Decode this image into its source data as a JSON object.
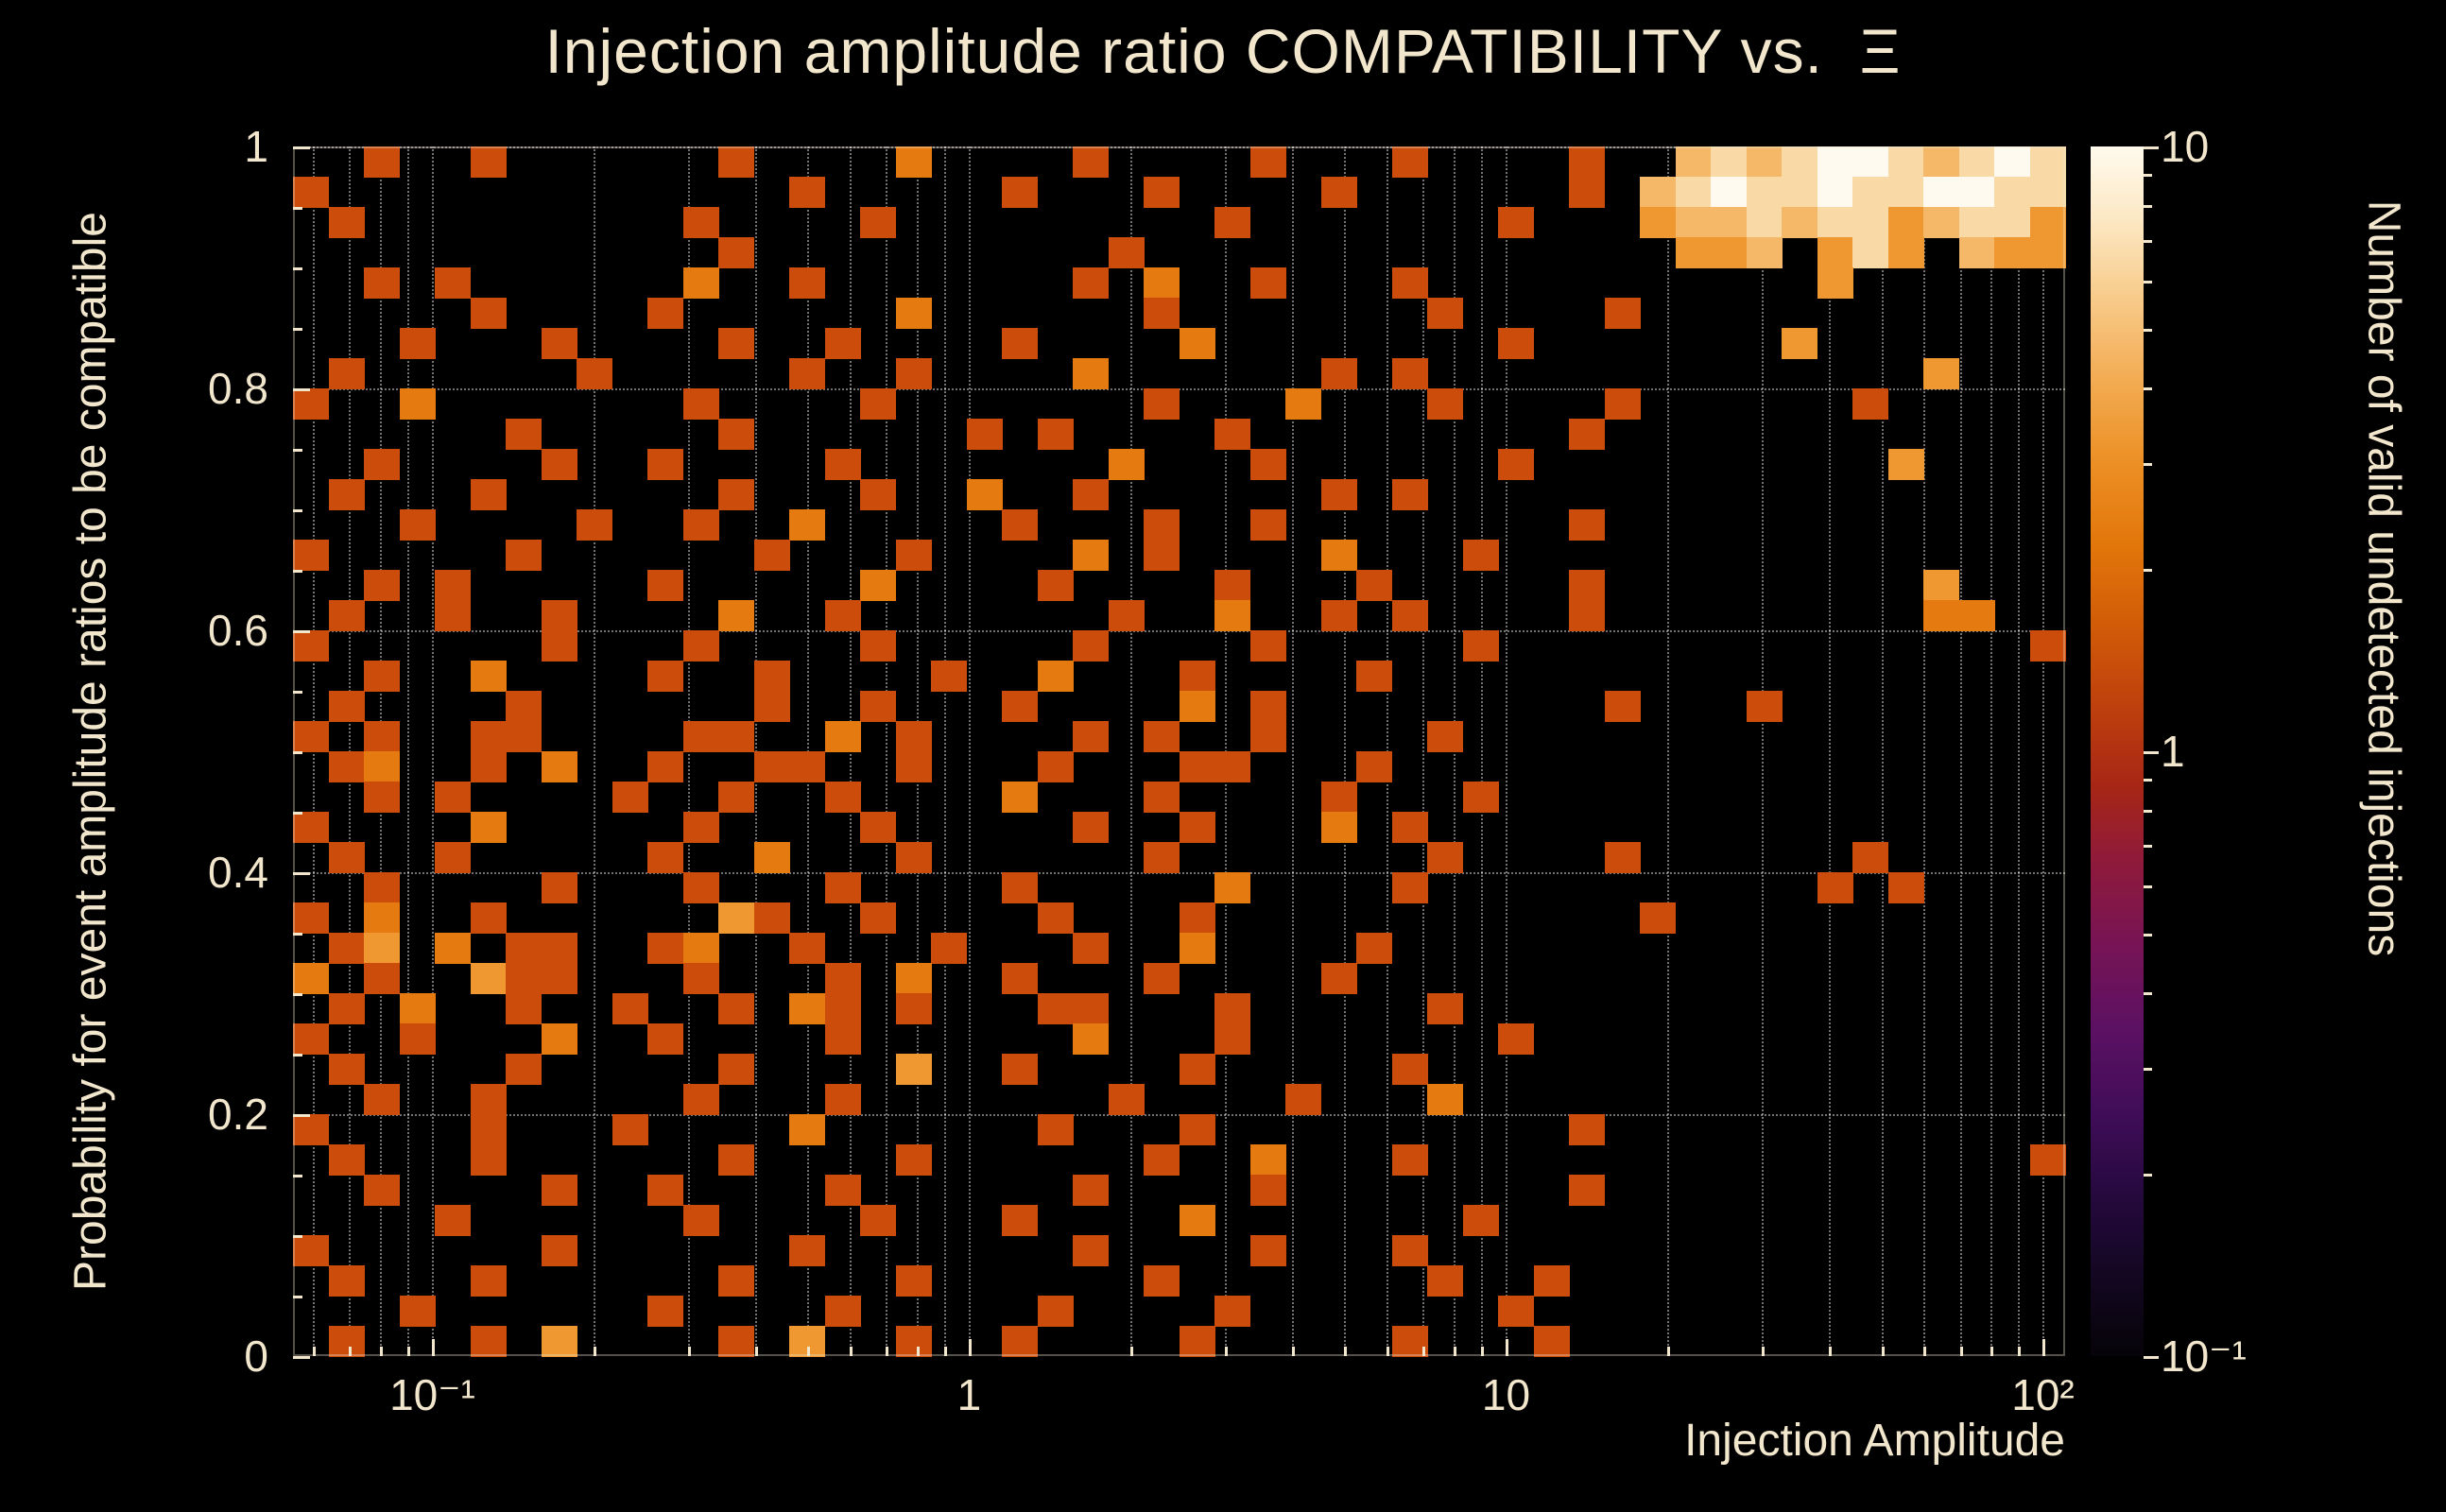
{
  "colors": {
    "background": "#000000",
    "text": "#f2e7cd",
    "grid": "rgba(255,255,255,0.45)",
    "cell_single_count": "#cc4c0c"
  },
  "chart_data": {
    "type": "heatmap",
    "title": "Injection amplitude ratio COMPATIBILITY vs.  Ξ",
    "xlabel": "Injection Amplitude",
    "ylabel": "Probability for event amplitude ratios to be compatible",
    "zlabel": "Number of valid undetected injections",
    "x_scale": "log",
    "x_range": [
      0.055,
      110
    ],
    "y_range": [
      0,
      1
    ],
    "z_scale": "log",
    "z_range": [
      0.1,
      10
    ],
    "x_ticks": [
      {
        "value": 0.1,
        "label": "10⁻¹"
      },
      {
        "value": 1,
        "label": "1"
      },
      {
        "value": 10,
        "label": "10"
      },
      {
        "value": 100,
        "label": "10²"
      }
    ],
    "y_ticks": [
      {
        "value": 0,
        "label": "0"
      },
      {
        "value": 0.2,
        "label": "0.2"
      },
      {
        "value": 0.4,
        "label": "0.4"
      },
      {
        "value": 0.6,
        "label": "0.6"
      },
      {
        "value": 0.8,
        "label": "0.8"
      },
      {
        "value": 1,
        "label": "1"
      }
    ],
    "colorbar_ticks": [
      {
        "value": 10,
        "label": "10"
      },
      {
        "value": 1,
        "label": "1"
      },
      {
        "value": 0.1,
        "label": "10⁻¹"
      }
    ],
    "colorbar_gradient": [
      "#060309 0%",
      "#12071f 6%",
      "#24093d 13%",
      "#400d58 20%",
      "#5c1163 27%",
      "#771455 34%",
      "#8f1a3a 41%",
      "#a62616 47%",
      "#bc3d0e 53%",
      "#d05a08 60%",
      "#e2760b 67%",
      "#ec9025 74%",
      "#f3ad55 81%",
      "#f8cd8f 88%",
      "#fce8c4 94%",
      "#fffaed 100%"
    ],
    "grid": {
      "nx": 50,
      "ny": 40,
      "row_order": "top-to-bottom",
      "cell_values": {
        "1": 1,
        "2": 2,
        "3": 3,
        "5": 5,
        "7": 7,
        "9": 10
      },
      "palette": {
        "1": "#cc4c0c",
        "2": "#e57a10",
        "3": "#ef9730",
        "5": "#f4b868",
        "7": "#f9d9a6",
        "9": "#fefaf0"
      },
      "rows": [
        [
          "..1..1....",
          "..1....2..",
          "..1....1..",
          ".1....1..5",
          "7579975797"
        ],
        [
          "1.........",
          "....1.....",
          "1...1....1",
          "......1.57",
          "9779779977"
        ],
        [
          ".1........",
          ".1....1...",
          "......1...",
          "....1...35",
          "5757735773"
        ],
        [
          "..........",
          "..1.......",
          "...1......",
          ".........3",
          "35.373.533"
        ],
        [
          "..1.1.....",
          ".2..1.....",
          "..1.2..1..",
          ".1........",
          "...3......"
        ],
        [
          ".....1....",
          "1......2..",
          "....1.....",
          "..1....1..",
          ".........."
        ],
        [
          "...1...1..",
          "..1..1....",
          "1....2....",
          "....1.....",
          "..3......."
        ],
        [
          ".1......1.",
          "....1..1..",
          "..2......1",
          ".1........",
          "......3..."
        ],
        [
          "1..2......",
          ".1....1...",
          "....1...2.",
          "..1....1..",
          "....1....."
        ],
        [
          "......1...",
          "..1......1",
          ".1....1...",
          "......1...",
          ".........."
        ],
        [
          "..1....1..",
          "1....1....",
          "...2...1..",
          "....1.....",
          ".....3...."
        ],
        [
          ".1...1....",
          "..1...1..2",
          "..1......1",
          ".1........",
          ".........."
        ],
        [
          "...1....1.",
          ".1..2.....",
          "1...1..1..",
          "......1...",
          ".........."
        ],
        [
          "1.....1...",
          "...1...1..",
          "..2.1....2",
          "...1......",
          ".........."
        ],
        [
          "..1.1.....",
          "1.....2...",
          ".1....1...",
          "1.....1...",
          "......3..."
        ],
        [
          ".1..1..1..",
          "..2..1....",
          "...1..2..1",
          ".1....1...",
          "......22.."
        ],
        [
          "1......1..",
          ".1....1...",
          "..1....1..",
          "...1......",
          ".........1"
        ],
        [
          "..1..2....",
          "1..1....1.",
          ".2...1....",
          "1.........",
          ".........."
        ],
        [
          ".1....1...",
          "...1..1...",
          "1....2.1..",
          ".......1..",
          ".1........"
        ],
        [
          "1.1..11...",
          ".11..2.1..",
          "..1.1..1..",
          "..1.......",
          ".........."
        ],
        [
          ".12..1.2..",
          "1..11..1..",
          ".1...11...",
          "1.........",
          ".........."
        ],
        [
          "..1.1....1",
          "..1..1....",
          "2...1....1",
          "...1......",
          ".........."
        ],
        [
          "1....2....",
          ".1....1...",
          "..1..1...2",
          ".1........",
          ".........."
        ],
        [
          ".1..1.....",
          "1..2...1..",
          "....1.....",
          "..1....1..",
          "....1....."
        ],
        [
          "..1....1..",
          ".1...1....",
          "1.....2...",
          ".1........",
          "...1.1...."
        ],
        [
          "1.2..1....",
          "..31..1...",
          ".1...1....",
          "........1.",
          ".........."
        ],
        [
          ".13.2.11..",
          "12..1...1.",
          "..1..2....",
          "1.........",
          ".........."
        ],
        [
          "2.1..311..",
          ".1...1.2..",
          "1...1....1",
          "..........",
          ".........."
        ],
        [
          ".1.2..1..1",
          "..1.21.1..",
          ".11...1...",
          "..1.......",
          ".........."
        ],
        [
          "1..1...2..",
          "1....1....",
          "..2...1...",
          "....1.....",
          ".........."
        ],
        [
          ".1....1...",
          "..1....3..",
          "1....1....",
          ".1........",
          ".........."
        ],
        [
          "..1..1....",
          ".1...1....",
          "...1....1.",
          "..2.......",
          ".........."
        ],
        [
          "1....1...1",
          "....2.....",
          ".1...1....",
          "......1...",
          ".........."
        ],
        [
          ".1...1....",
          "..1....1..",
          "....1..2..",
          ".1........",
          ".........1"
        ],
        [
          "..1....1..",
          "1....1....",
          "..1....1..",
          "......1...",
          ".........."
        ],
        [
          "....1.....",
          ".1....1...",
          "1....2....",
          "...1......",
          ".........."
        ],
        [
          "1......1..",
          "....1.....",
          "..1....1..",
          ".1........",
          ".........."
        ],
        [
          ".1...1....",
          "..1....1..",
          "....1.....",
          "..1..1....",
          ".........."
        ],
        [
          "...1......",
          "1....1....",
          ".1....1...",
          "....1.....",
          ".........."
        ],
        [
          ".1...1.3..",
          "..1.3..1..",
          "1....1....",
          ".1...1....",
          ".........."
        ]
      ]
    }
  }
}
